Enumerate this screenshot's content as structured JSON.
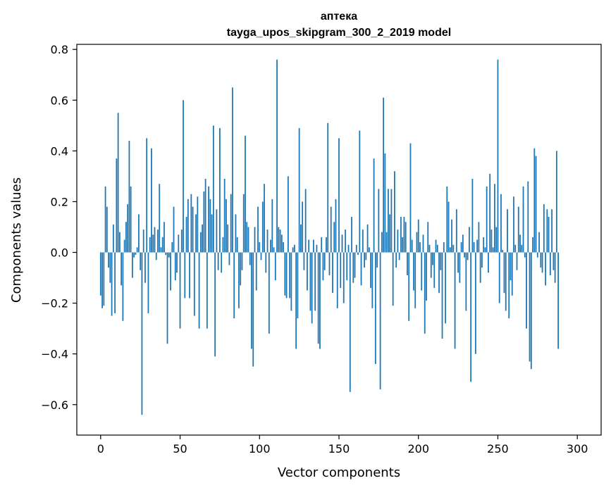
{
  "chart_data": {
    "type": "bar",
    "title_line1": "аптека",
    "title_line2": "tayga_upos_skipgram_300_2_2019 model",
    "xlabel": "Vector components",
    "ylabel": "Components values",
    "xlim": [
      -15,
      315
    ],
    "ylim": [
      -0.72,
      0.82
    ],
    "xticks": [
      0,
      50,
      100,
      150,
      200,
      250,
      300
    ],
    "yticks": [
      -0.6,
      -0.4,
      -0.2,
      0.0,
      0.2,
      0.4,
      0.6,
      0.8
    ],
    "ytick_labels": [
      "−0.6",
      "−0.4",
      "−0.2",
      "0.0",
      "0.2",
      "0.4",
      "0.6",
      "0.8"
    ],
    "bar_color": "#1f77b4",
    "values": [
      -0.17,
      -0.22,
      -0.21,
      0.26,
      0.18,
      -0.06,
      -0.12,
      -0.25,
      0.11,
      -0.24,
      0.37,
      0.55,
      0.08,
      -0.13,
      -0.27,
      0.05,
      0.12,
      0.19,
      0.44,
      0.26,
      -0.1,
      -0.02,
      -0.01,
      0.02,
      0.15,
      -0.07,
      -0.64,
      0.09,
      -0.12,
      0.45,
      -0.24,
      0.06,
      0.41,
      0.07,
      0.1,
      -0.03,
      0.09,
      0.27,
      0.02,
      0.06,
      0.12,
      -0.01,
      -0.36,
      -0.02,
      -0.15,
      0.04,
      0.18,
      -0.11,
      -0.08,
      0.07,
      -0.3,
      0.09,
      0.6,
      -0.18,
      0.14,
      0.21,
      -0.18,
      0.23,
      0.18,
      -0.25,
      0.15,
      0.22,
      -0.3,
      0.08,
      0.11,
      0.24,
      0.29,
      -0.3,
      0.26,
      0.21,
      0.15,
      0.5,
      -0.41,
      0.17,
      -0.07,
      0.49,
      -0.08,
      0.06,
      0.29,
      0.21,
      0.11,
      -0.05,
      0.23,
      0.65,
      -0.26,
      0.15,
      0.06,
      -0.22,
      -0.13,
      -0.07,
      0.23,
      0.46,
      0.12,
      0.1,
      -0.05,
      -0.38,
      -0.45,
      0.1,
      -0.15,
      0.18,
      0.04,
      -0.03,
      0.2,
      0.27,
      -0.08,
      0.09,
      -0.32,
      0.05,
      0.21,
      0.02,
      -0.11,
      0.76,
      0.1,
      0.09,
      0.07,
      0.04,
      -0.17,
      -0.18,
      0.3,
      -0.18,
      -0.23,
      0.02,
      0.03,
      -0.38,
      -0.26,
      0.49,
      0.11,
      0.2,
      -0.07,
      0.25,
      -0.15,
      0.05,
      -0.23,
      -0.28,
      0.05,
      -0.23,
      0.03,
      -0.36,
      -0.38,
      0.06,
      -0.11,
      -0.07,
      0.06,
      0.51,
      -0.09,
      0.18,
      -0.16,
      0.12,
      0.21,
      -0.22,
      0.45,
      -0.14,
      0.07,
      -0.2,
      0.09,
      -0.11,
      0.03,
      -0.55,
      0.14,
      -0.12,
      -0.1,
      0.03,
      -0.01,
      0.48,
      -0.13,
      0.09,
      -0.06,
      -0.03,
      0.11,
      0.02,
      -0.14,
      -0.22,
      0.37,
      -0.44,
      -0.06,
      0.25,
      -0.54,
      0.08,
      0.61,
      0.39,
      0.08,
      0.25,
      0.15,
      0.25,
      -0.21,
      0.32,
      -0.06,
      0.09,
      -0.03,
      0.14,
      0.06,
      0.14,
      0.12,
      -0.09,
      -0.27,
      0.43,
      0.05,
      -0.15,
      -0.22,
      0.08,
      0.13,
      0.04,
      -0.15,
      0.07,
      -0.32,
      -0.19,
      0.12,
      0.03,
      -0.1,
      -0.05,
      -0.14,
      0.05,
      0.03,
      -0.16,
      -0.07,
      -0.34,
      0.04,
      -0.28,
      0.26,
      0.2,
      0.02,
      0.13,
      0.03,
      -0.38,
      0.17,
      -0.08,
      -0.12,
      0.04,
      0.07,
      -0.02,
      -0.23,
      -0.03,
      0.1,
      -0.51,
      0.29,
      0.04,
      -0.4,
      0.05,
      0.12,
      -0.12,
      -0.06,
      0.06,
      0.02,
      0.26,
      -0.08,
      0.31,
      0.09,
      0.02,
      0.27,
      0.1,
      0.76,
      -0.2,
      0.23,
      0.01,
      -0.16,
      -0.23,
      0.17,
      -0.26,
      -0.11,
      -0.17,
      0.22,
      0.03,
      -0.07,
      0.18,
      0.07,
      0.03,
      0.26,
      -0.02,
      -0.3,
      0.28,
      -0.43,
      -0.46,
      0.06,
      0.41,
      0.38,
      -0.02,
      0.08,
      -0.06,
      -0.08,
      0.19,
      -0.13,
      0.17,
      0.14,
      -0.09,
      0.17,
      -0.07,
      -0.12,
      0.4,
      -0.38
    ]
  }
}
